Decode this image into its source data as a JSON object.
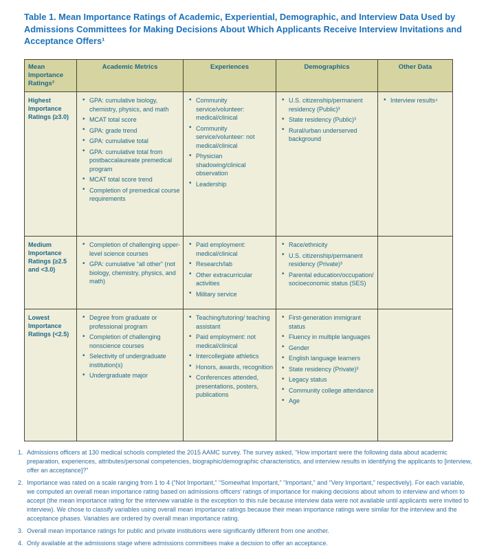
{
  "title": "Table 1. Mean Importance Ratings of Academic, Experiential, Demographic, and Interview Data Used by Admissions Committees for Making Decisions About Which Applicants Receive Interview Invitations and Acceptance Offers¹",
  "colors": {
    "title_blue": "#1c70b8",
    "table_text": "#1e6888",
    "header_bg": "#d6d4a0",
    "cell_bg": "#efeeda",
    "border": "#45453a",
    "footnote_text": "#2e6d9e"
  },
  "table": {
    "headers": [
      "Mean Importance Ratings²",
      "Academic Metrics",
      "Experiences",
      "Demographics",
      "Other Data"
    ],
    "rows": [
      {
        "label": "Highest Importance Ratings (≥3.0)",
        "academic_metrics": [
          "GPA: cumulative biology, chemistry, physics, and math",
          "MCAT total score",
          "GPA: grade trend",
          "GPA: cumulative total",
          "GPA: cumulative total from postbaccalaureate premedical program",
          "MCAT total score trend",
          "Completion of premedical course requirements"
        ],
        "experiences": [
          "Community service/volunteer: medical/clinical",
          "Community service/volunteer: not medical/clinical",
          "Physician shadowing/clinical observation",
          "Leadership"
        ],
        "demographics": [
          "U.S. citizenship/permanent residency (Public)³",
          "State residency (Public)³",
          "Rural/urban underserved background"
        ],
        "other_data": [
          "Interview results⁴"
        ]
      },
      {
        "label": "Medium Importance Ratings (≥2.5 and <3.0)",
        "academic_metrics": [
          "Completion of challenging upper-level science courses",
          "GPA: cumulative “all other” (not biology, chemistry, physics, and math)"
        ],
        "experiences": [
          "Paid employment: medical/clinical",
          "Research/lab",
          "Other extracurricular activities",
          "Military service"
        ],
        "demographics": [
          "Race/ethnicity",
          "U.S. citizenship/permanent residency (Private)³",
          "Parental education/occupation/ socioeconomic status (SES)"
        ],
        "other_data": []
      },
      {
        "label": "Lowest Importance Ratings (<2.5)",
        "academic_metrics": [
          "Degree from graduate or professional program",
          "Completion of challenging nonscience courses",
          "Selectivity of undergraduate institution(s)",
          "Undergraduate major"
        ],
        "experiences": [
          "Teaching/tutoring/ teaching assistant",
          "Paid employment: not medical/clinical",
          "Intercollegiate athletics",
          "Honors, awards, recognition",
          "Conferences attended, presentations, posters, publications"
        ],
        "demographics": [
          "First-generation immigrant status",
          "Fluency in multiple languages",
          "Gender",
          "English language learners",
          "State residency (Private)³",
          "Legacy status",
          "Community college attendance",
          "Age"
        ],
        "other_data": []
      }
    ]
  },
  "footnotes": [
    {
      "num": "1.",
      "text": "Admissions officers at 130 medical schools completed the 2015 AAMC survey. The survey asked, “How important were the following data about academic preparation, experiences, attributes/personal competencies, biographic/demographic characteristics, and interview results in identifying the applicants to [interview, offer an acceptance]?”"
    },
    {
      "num": "2.",
      "text": "Importance was rated on a scale ranging from 1 to 4 (“Not Important,” “Somewhat Important,” “Important,” and “Very Important,” respectively). For each variable, we computed an overall mean importance rating based on admissions officers’ ratings of importance for making decisions about whom to interview and whom to accept (the mean importance rating for the interview variable is the exception to this rule because interview data were not available until applicants were invited to interview). We chose to classify variables using overall mean importance ratings because their mean importance ratings were similar for the interview and the acceptance phases. Variables are ordered by overall mean importance rating."
    },
    {
      "num": "3.",
      "text": "Overall mean importance ratings for public and private institutions were significantly different from one another."
    },
    {
      "num": "4.",
      "text": "Only available at the admissions stage where admissions committees make a decision to offer an acceptance."
    }
  ]
}
